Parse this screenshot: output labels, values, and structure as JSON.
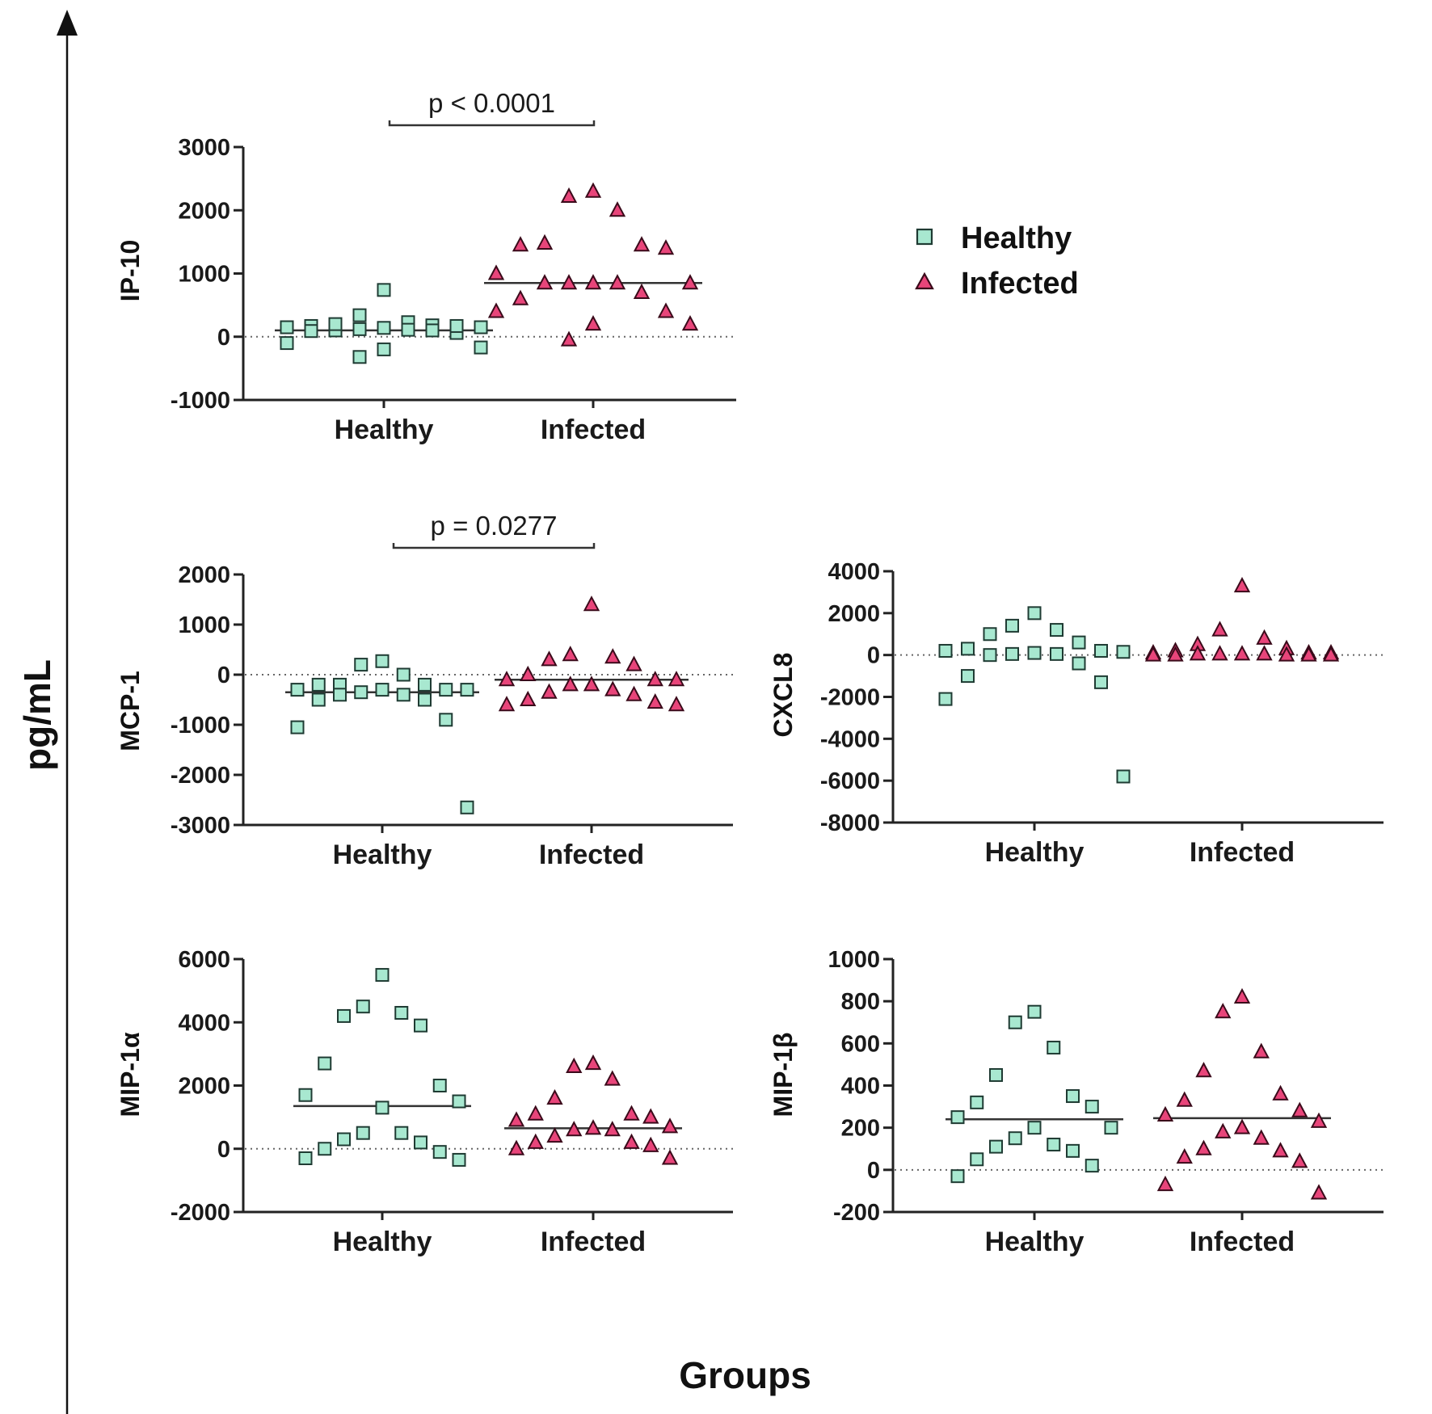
{
  "axis_titles": {
    "y": "pg/mL",
    "x": "Groups"
  },
  "legend": [
    {
      "key": "healthy",
      "label": "Healthy",
      "marker": "square",
      "color": "#a8e8d0"
    },
    {
      "key": "infected",
      "label": "Infected",
      "marker": "triangle",
      "color": "#e8457a"
    }
  ],
  "chart_data": [
    {
      "type": "scatter",
      "title": "IP-10",
      "ylabel": "IP-10",
      "xlabel": "",
      "categories": [
        "Healthy",
        "Infected"
      ],
      "ylim": [
        -1000,
        3000
      ],
      "yticks": [
        3000,
        2000,
        1000,
        0,
        -1000
      ],
      "ytick_labels": [
        "3000",
        "2000",
        "1000",
        "0",
        "-1000"
      ],
      "annotation": "p < 0.0001",
      "medians": {
        "Healthy": 100,
        "Infected": 850
      },
      "series": [
        {
          "name": "Healthy",
          "values": [
            170,
            90,
            150,
            230,
            150,
            340,
            100,
            200,
            120,
            740,
            60,
            -100,
            -170,
            -320,
            -200,
            110,
            180,
            140,
            100,
            170
          ]
        },
        {
          "name": "Infected",
          "values": [
            2220,
            2300,
            2000,
            1450,
            1400,
            1450,
            1480,
            1000,
            850,
            700,
            850,
            850,
            600,
            850,
            400,
            400,
            200,
            200,
            -50,
            850
          ]
        }
      ]
    },
    {
      "type": "scatter",
      "title": "MCP-1",
      "ylabel": "MCP-1",
      "xlabel": "",
      "categories": [
        "Healthy",
        "Infected"
      ],
      "ylim": [
        -3000,
        2000
      ],
      "yticks": [
        2000,
        1000,
        0,
        -1000,
        -2000,
        -3000
      ],
      "ytick_labels": [
        "2000",
        "1000",
        "0",
        "-1000",
        "-2000",
        "-3000"
      ],
      "annotation": "p = 0.0277",
      "medians": {
        "Healthy": -350,
        "Infected": -100
      },
      "series": [
        {
          "name": "Healthy",
          "values": [
            0,
            -300,
            -200,
            270,
            -400,
            -500,
            -300,
            200,
            -200,
            -350,
            -300,
            -200,
            -500,
            -400,
            -900,
            -1050,
            -2650,
            -300
          ]
        },
        {
          "name": "Infected",
          "values": [
            1400,
            -100,
            300,
            400,
            200,
            350,
            0,
            -100,
            -200,
            -300,
            -400,
            -500,
            -550,
            -600,
            -350,
            -200,
            -600,
            -100
          ]
        }
      ]
    },
    {
      "type": "scatter",
      "title": "CXCL8",
      "ylabel": "CXCL8",
      "xlabel": "",
      "categories": [
        "Healthy",
        "Infected"
      ],
      "ylim": [
        -8000,
        4000
      ],
      "yticks": [
        4000,
        2000,
        0,
        -2000,
        -4000,
        -6000,
        -8000
      ],
      "ytick_labels": [
        "4000",
        "2000",
        "0",
        "-2000",
        "-4000",
        "-6000",
        "-8000"
      ],
      "annotation": "",
      "medians": {},
      "series": [
        {
          "name": "Healthy",
          "values": [
            50,
            200,
            600,
            1000,
            1200,
            2000,
            1400,
            50,
            0,
            -400,
            -1300,
            -1000,
            -2100,
            100,
            200,
            150,
            300,
            -5800
          ]
        },
        {
          "name": "Infected",
          "values": [
            3300,
            1200,
            800,
            500,
            300,
            200,
            100,
            50,
            0,
            50,
            0,
            100,
            50,
            0,
            0,
            50,
            100,
            0
          ]
        }
      ]
    },
    {
      "type": "scatter",
      "title": "MIP-1α",
      "ylabel": "MIP-1α",
      "xlabel": "",
      "categories": [
        "Healthy",
        "Infected"
      ],
      "ylim": [
        -2000,
        6000
      ],
      "yticks": [
        6000,
        4000,
        2000,
        0,
        -2000
      ],
      "ytick_labels": [
        "6000",
        "4000",
        "2000",
        "0",
        "-2000"
      ],
      "annotation": "",
      "medians": {
        "Healthy": 1350,
        "Infected": 650
      },
      "series": [
        {
          "name": "Healthy",
          "values": [
            5500,
            4500,
            4300,
            4200,
            3900,
            2700,
            2000,
            1700,
            1300,
            1500,
            500,
            500,
            300,
            200,
            0,
            -100,
            -300,
            -350
          ]
        },
        {
          "name": "Infected",
          "values": [
            2700,
            2600,
            2200,
            1600,
            1100,
            1100,
            1000,
            900,
            700,
            650,
            600,
            600,
            400,
            200,
            200,
            100,
            0,
            -300
          ]
        }
      ]
    },
    {
      "type": "scatter",
      "title": "MIP-1β",
      "ylabel": "MIP-1β",
      "xlabel": "",
      "categories": [
        "Healthy",
        "Infected"
      ],
      "ylim": [
        -200,
        1000
      ],
      "yticks": [
        1000,
        800,
        600,
        400,
        200,
        0,
        -200
      ],
      "ytick_labels": [
        "1000",
        "800",
        "600",
        "400",
        "200",
        "0",
        "-200"
      ],
      "annotation": "",
      "medians": {
        "Healthy": 240,
        "Infected": 245
      },
      "series": [
        {
          "name": "Healthy",
          "values": [
            750,
            700,
            580,
            450,
            350,
            320,
            300,
            250,
            200,
            200,
            150,
            120,
            110,
            90,
            50,
            20,
            -30
          ]
        },
        {
          "name": "Infected",
          "values": [
            820,
            750,
            560,
            470,
            360,
            330,
            280,
            260,
            230,
            200,
            180,
            150,
            100,
            90,
            60,
            40,
            -70,
            -110
          ]
        }
      ]
    }
  ]
}
